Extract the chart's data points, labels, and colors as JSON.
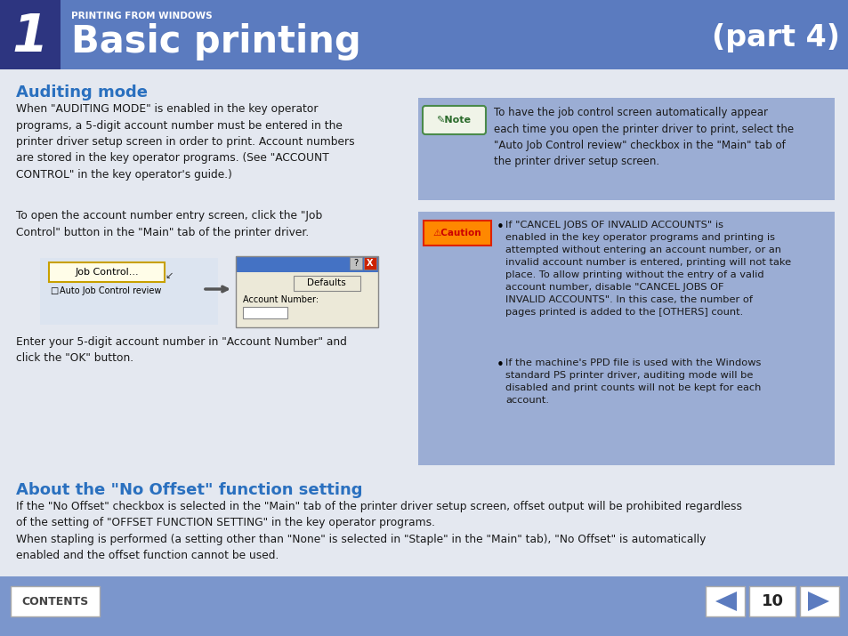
{
  "bg_color": "#e4e8f0",
  "header_bg": "#5b7bbf",
  "header_dark_bg": "#2d3580",
  "footer_bg": "#7b96cc",
  "title_small": "PRINTING FROM WINDOWS",
  "title_main": "Basic printing",
  "title_part": "(part 4)",
  "section1_title": "Auditing mode",
  "section1_title_color": "#2a70bf",
  "note_bg": "#9badd4",
  "caution_bg": "#9badd4",
  "section2_title": "About the \"No Offset\" function setting",
  "section2_title_color": "#2a70bf",
  "footer_contents": "CONTENTS",
  "footer_page": "10",
  "white": "#ffffff",
  "black": "#000000",
  "text_color": "#1a1a1a",
  "dialog_title_color": "#4472c4"
}
